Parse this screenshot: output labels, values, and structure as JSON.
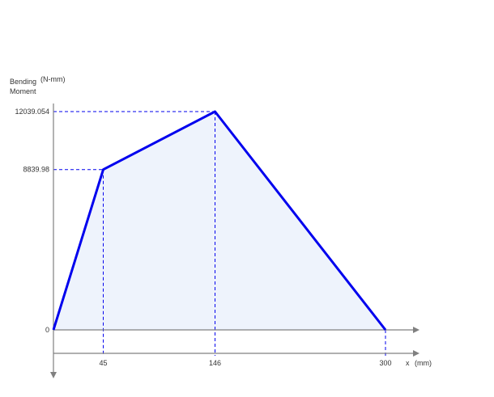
{
  "chart_data": {
    "type": "area",
    "title": "",
    "ylabel": [
      "Bending",
      "Moment"
    ],
    "yunit": "(N-mm)",
    "xlabel": "x",
    "xunit": "(mm)",
    "x": [
      0,
      45,
      146,
      300
    ],
    "y": [
      0,
      8839.98,
      12039.054,
      0
    ],
    "x_tick_labels": [
      "45",
      "146",
      "300"
    ],
    "y_tick_labels": [
      "12039.054",
      "8839.98",
      "0"
    ],
    "xlim": [
      0,
      300
    ],
    "ylim": [
      0,
      12039.054
    ],
    "grid": false,
    "colors": {
      "line": "#0000ee",
      "fill": "#eef3fc",
      "guide": "#0000ee",
      "axis": "#808080"
    }
  }
}
